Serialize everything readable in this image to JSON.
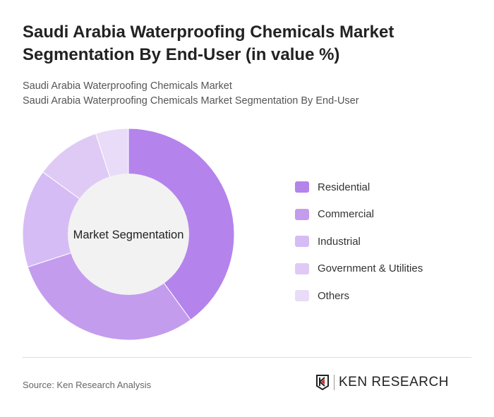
{
  "title": "Saudi Arabia Waterproofing Chemicals Market Segmentation By End-User (in value %)",
  "subtitle1": "Saudi Arabia Waterproofing Chemicals Market",
  "subtitle2": "Saudi Arabia Waterproofing Chemicals Market Segmentation By End-User",
  "source": "Source: Ken Research Analysis",
  "logo_text": "KEN RESEARCH",
  "chart_data": {
    "type": "pie",
    "variant": "donut",
    "center_label": "Market Segmentation",
    "legend_position": "right",
    "categories": [
      "Residential",
      "Commercial",
      "Industrial",
      "Government & Utilities",
      "Others"
    ],
    "values": [
      40,
      30,
      15,
      10,
      5
    ],
    "colors": [
      "#b583ec",
      "#c39cee",
      "#d6bcf5",
      "#dfcaf6",
      "#e8dcf8"
    ]
  }
}
